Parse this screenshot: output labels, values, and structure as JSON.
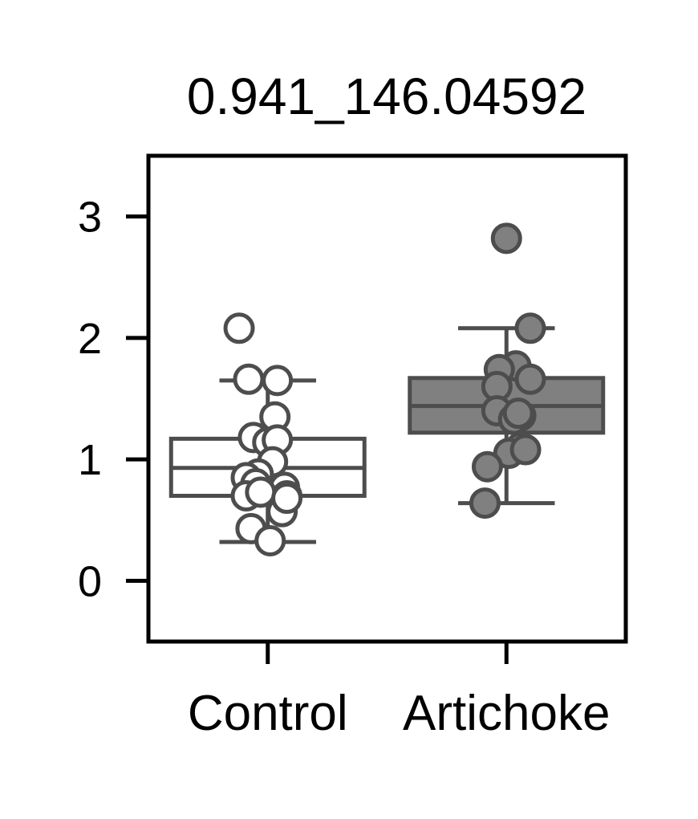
{
  "chart_data": {
    "type": "box",
    "title": "0.941_146.04592",
    "xlabel": "",
    "ylabel": "",
    "ylim": [
      -0.5,
      3.5
    ],
    "yticks": [
      0,
      1,
      2,
      3
    ],
    "categories": [
      "Control",
      "Artichoke"
    ],
    "grid": false,
    "legend": "none",
    "series": [
      {
        "fill": "#ffffff",
        "edge": "#4d4d4d",
        "box": {
          "q1": 0.7,
          "median": 0.93,
          "q3": 1.17,
          "whisker_low": 0.32,
          "whisker_high": 1.65
        },
        "points": [
          {
            "dx": -0.12,
            "y": 2.08
          },
          {
            "dx": -0.08,
            "y": 1.66
          },
          {
            "dx": 0.04,
            "y": 1.65
          },
          {
            "dx": 0.03,
            "y": 1.35
          },
          {
            "dx": -0.06,
            "y": 1.18
          },
          {
            "dx": 0.0,
            "y": 1.14
          },
          {
            "dx": 0.04,
            "y": 1.16
          },
          {
            "dx": 0.02,
            "y": 0.98
          },
          {
            "dx": -0.04,
            "y": 0.88
          },
          {
            "dx": -0.09,
            "y": 0.85
          },
          {
            "dx": -0.05,
            "y": 0.8
          },
          {
            "dx": 0.07,
            "y": 0.77
          },
          {
            "dx": 0.08,
            "y": 0.7
          },
          {
            "dx": -0.09,
            "y": 0.7
          },
          {
            "dx": 0.06,
            "y": 0.57
          },
          {
            "dx": -0.03,
            "y": 0.73
          },
          {
            "dx": 0.08,
            "y": 0.68
          },
          {
            "dx": -0.07,
            "y": 0.43
          },
          {
            "dx": 0.01,
            "y": 0.33
          }
        ]
      },
      {
        "fill": "#808080",
        "edge": "#4d4d4d",
        "box": {
          "q1": 1.22,
          "median": 1.44,
          "q3": 1.67,
          "whisker_low": 0.64,
          "whisker_high": 2.08
        },
        "points": [
          {
            "dx": 0.0,
            "y": 2.82
          },
          {
            "dx": 0.1,
            "y": 2.08
          },
          {
            "dx": 0.04,
            "y": 1.77
          },
          {
            "dx": -0.03,
            "y": 1.74
          },
          {
            "dx": 0.1,
            "y": 1.66
          },
          {
            "dx": -0.04,
            "y": 1.6
          },
          {
            "dx": -0.04,
            "y": 1.4
          },
          {
            "dx": 0.06,
            "y": 1.36
          },
          {
            "dx": 0.03,
            "y": 1.33
          },
          {
            "dx": 0.05,
            "y": 1.38
          },
          {
            "dx": 0.06,
            "y": 1.1
          },
          {
            "dx": 0.01,
            "y": 1.05
          },
          {
            "dx": 0.08,
            "y": 1.08
          },
          {
            "dx": -0.08,
            "y": 0.94
          },
          {
            "dx": -0.09,
            "y": 0.64
          }
        ]
      }
    ]
  }
}
